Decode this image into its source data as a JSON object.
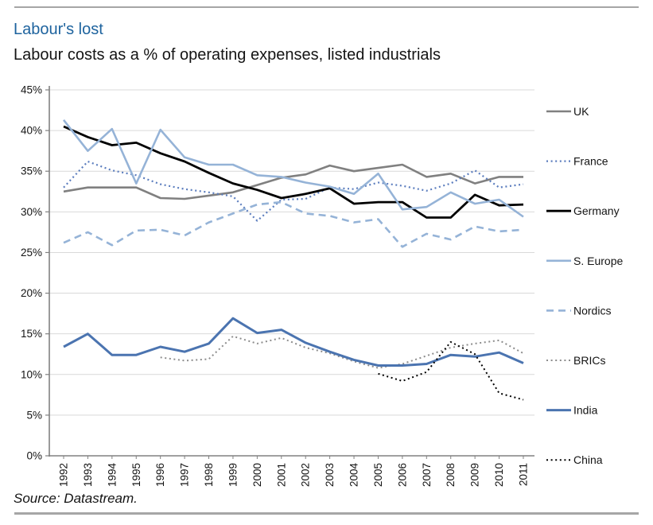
{
  "header": {
    "title": "Labour's lost",
    "subtitle": "Labour costs as a % of operating expenses, listed industrials"
  },
  "source": "Source: Datastream.",
  "chart_data": {
    "type": "line",
    "x_labels": [
      "1992",
      "1993",
      "1994",
      "1995",
      "1996",
      "1997",
      "1998",
      "1999",
      "2000",
      "2001",
      "2002",
      "2003",
      "2004",
      "2005",
      "2006",
      "2007",
      "2008",
      "2009",
      "2010",
      "2011"
    ],
    "ylim": [
      0,
      45
    ],
    "ytick_step": 5,
    "ytick_labels": [
      "0%",
      "5%",
      "10%",
      "15%",
      "20%",
      "25%",
      "30%",
      "35%",
      "40%",
      "45%"
    ],
    "grid": "horizontal",
    "legend_position": "right",
    "colors": {
      "grid": "#d9d9d9",
      "axis": "#808080",
      "title_accent": "#1e639e"
    },
    "series": [
      {
        "name": "UK",
        "slug": "uk",
        "color": "#808080",
        "line_style": "solid",
        "width": 2.6,
        "values": [
          32.5,
          33.0,
          33.0,
          33.0,
          31.7,
          31.6,
          32.0,
          32.4,
          33.3,
          34.2,
          34.6,
          35.7,
          35.0,
          35.4,
          35.8,
          34.3,
          34.7,
          33.5,
          34.3,
          34.3
        ]
      },
      {
        "name": "France",
        "slug": "france",
        "color": "#5b7dbe",
        "line_style": "dotted",
        "width": 2.2,
        "values": [
          33.0,
          36.2,
          35.1,
          34.5,
          33.4,
          32.8,
          32.4,
          31.9,
          28.9,
          31.5,
          31.6,
          33.0,
          32.8,
          33.6,
          33.2,
          32.6,
          33.5,
          35.1,
          33.0,
          33.4
        ]
      },
      {
        "name": "Germany",
        "slug": "germany",
        "color": "#000000",
        "line_style": "solid",
        "width": 2.8,
        "values": [
          40.5,
          39.2,
          38.2,
          38.5,
          37.2,
          36.2,
          34.8,
          33.5,
          32.7,
          31.7,
          32.2,
          32.9,
          31.0,
          31.2,
          31.2,
          29.3,
          29.3,
          32.1,
          30.8,
          30.9
        ]
      },
      {
        "name": "S. Europe",
        "slug": "s-europe",
        "color": "#95b3d7",
        "line_style": "solid",
        "width": 2.6,
        "values": [
          41.3,
          37.5,
          40.2,
          33.5,
          40.1,
          36.7,
          35.8,
          35.8,
          34.5,
          34.3,
          33.6,
          33.1,
          32.2,
          34.7,
          30.3,
          30.6,
          32.4,
          31.0,
          31.5,
          29.4
        ]
      },
      {
        "name": "Nordics",
        "slug": "nordics",
        "color": "#95b3d7",
        "line_style": "dashed",
        "width": 2.6,
        "values": [
          26.2,
          27.5,
          25.9,
          27.7,
          27.8,
          27.1,
          28.7,
          29.8,
          30.9,
          31.2,
          29.8,
          29.5,
          28.7,
          29.1,
          25.7,
          27.3,
          26.6,
          28.2,
          27.6,
          27.8
        ]
      },
      {
        "name": "BRICs",
        "slug": "brics",
        "color": "#8c8c8c",
        "line_style": "dotted",
        "width": 2.0,
        "values": [
          null,
          null,
          null,
          null,
          12.1,
          11.7,
          11.9,
          14.7,
          13.8,
          14.5,
          13.3,
          12.6,
          11.6,
          10.8,
          11.3,
          12.3,
          13.3,
          13.8,
          14.2,
          12.6
        ]
      },
      {
        "name": "India",
        "slug": "india",
        "color": "#4b74b0",
        "line_style": "solid",
        "width": 3.0,
        "values": [
          13.4,
          15.0,
          12.4,
          12.4,
          13.4,
          12.8,
          13.8,
          16.9,
          15.1,
          15.5,
          13.9,
          12.8,
          11.8,
          11.1,
          11.1,
          11.3,
          12.4,
          12.2,
          12.7,
          11.4
        ]
      },
      {
        "name": "China",
        "slug": "china",
        "color": "#000000",
        "line_style": "dotted",
        "width": 2.0,
        "values": [
          null,
          null,
          null,
          null,
          null,
          null,
          null,
          null,
          null,
          null,
          null,
          null,
          null,
          10.1,
          9.2,
          10.3,
          14.0,
          12.5,
          7.7,
          6.9
        ]
      }
    ]
  }
}
